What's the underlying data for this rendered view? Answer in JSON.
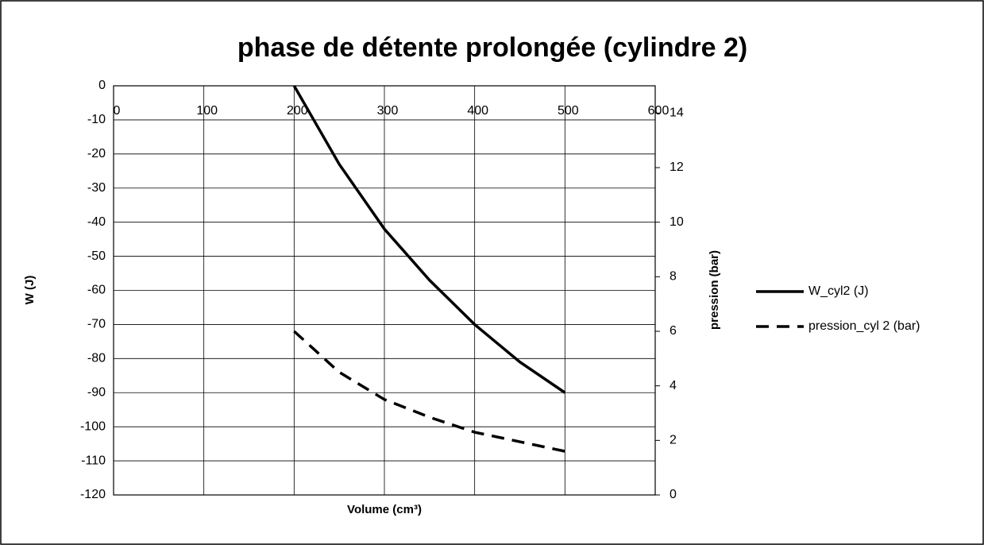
{
  "chart_data": {
    "type": "line",
    "title": "phase de détente prolongée (cylindre 2)",
    "xlabel": "Volume (cm³)",
    "ylabel": "W (J)",
    "y2label": "pression (bar)",
    "x": [
      200,
      250,
      300,
      350,
      400,
      450,
      500
    ],
    "series": [
      {
        "name": "W_cyl2 (J)",
        "color": "#000000",
        "dashed": false,
        "values": [
          0,
          -23,
          -42,
          -57,
          -70,
          -81,
          -90
        ]
      },
      {
        "name": "pression_cyl 2 (bar)",
        "color": "#000000",
        "dashed": true,
        "axis": "y2",
        "values": [
          6.0,
          4.5,
          3.5,
          2.85,
          2.3,
          1.95,
          1.6
        ]
      }
    ],
    "xlim": [
      0,
      600
    ],
    "xticks": [
      0,
      100,
      200,
      300,
      400,
      500,
      600
    ],
    "ylim": [
      -120,
      0
    ],
    "yticks": [
      0,
      -10,
      -20,
      -30,
      -40,
      -50,
      -60,
      -70,
      -80,
      -90,
      -100,
      -110,
      -120
    ],
    "y2lim": [
      0,
      15
    ],
    "y2ticks": [
      0,
      2,
      4,
      6,
      8,
      10,
      12,
      14
    ],
    "grid": true,
    "legend": "right"
  }
}
